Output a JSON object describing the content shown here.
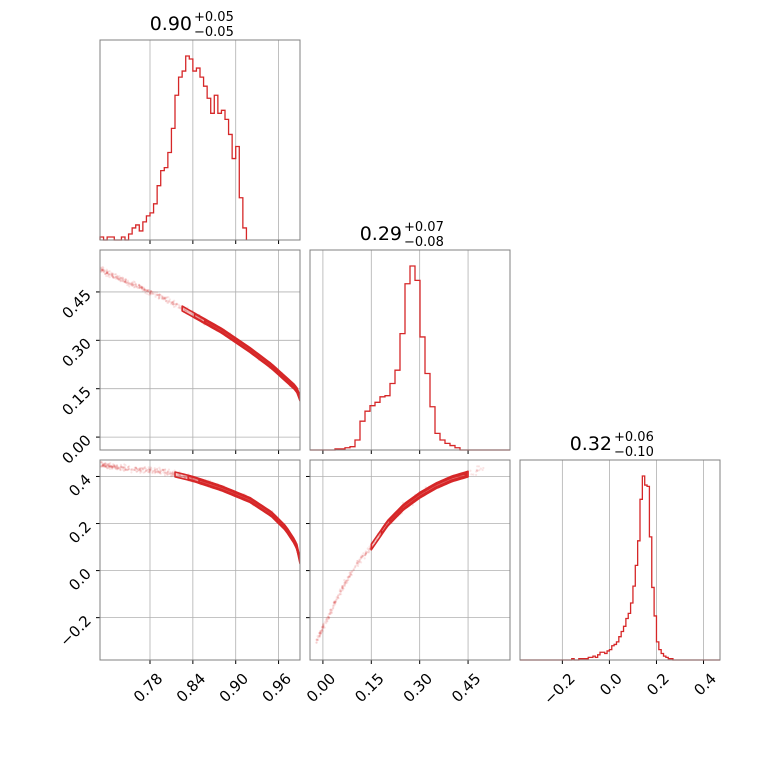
{
  "colors": {
    "accent": "#d62728",
    "grid": "#b0b0b0",
    "frame": "#808080"
  },
  "chart_data": {
    "type": "corner",
    "grid": true,
    "parameters": [
      {
        "id": "p0",
        "range": [
          0.71,
          0.99
        ],
        "ticks": [
          0.78,
          0.84,
          0.9,
          0.96
        ],
        "tick_labels": [
          "0.78",
          "0.84",
          "0.90",
          "0.96"
        ],
        "title": {
          "median": "0.90",
          "plus": "+0.05",
          "minus": "−0.05"
        },
        "hist_start": 0.71,
        "hist_bin_width": 0.005,
        "hist": [
          1,
          0,
          1,
          1,
          0,
          0,
          1,
          0,
          2,
          4,
          5,
          3,
          6,
          8,
          9,
          12,
          18,
          23,
          24,
          29,
          37,
          48,
          54,
          56,
          61,
          60,
          56,
          57,
          54,
          51,
          47,
          42,
          48,
          42,
          43,
          40,
          35,
          27,
          31,
          14,
          4
        ]
      },
      {
        "id": "p1",
        "range": [
          -0.04,
          0.58
        ],
        "ticks": [
          0.0,
          0.15,
          0.3,
          0.45
        ],
        "tick_labels": [
          "0.00",
          "0.15",
          "0.30",
          "0.45"
        ],
        "title": {
          "median": "0.29",
          "plus": "+0.07",
          "minus": "−0.08"
        },
        "hist_start": -0.04,
        "hist_bin_width": 0.0155,
        "hist": [
          0,
          0,
          0,
          0,
          0,
          1,
          1,
          2,
          3,
          9,
          26,
          35,
          40,
          43,
          48,
          49,
          60,
          72,
          105,
          150,
          166,
          153,
          102,
          69,
          39,
          15,
          9,
          6,
          4,
          2,
          0,
          0,
          0,
          0,
          0,
          0,
          0,
          0,
          0,
          0
        ]
      },
      {
        "id": "p2",
        "range": [
          -0.38,
          0.47
        ],
        "ticks": [
          -0.2,
          0.0,
          0.2,
          0.4
        ],
        "tick_labels": [
          "−0.2",
          "0.0",
          "0.2",
          "0.4"
        ],
        "title": {
          "median": "0.32",
          "plus": "+0.06",
          "minus": "−0.10"
        },
        "hist_start": -0.38,
        "hist_bin_width": 0.01,
        "hist": [
          0,
          0,
          0,
          0,
          0,
          0,
          0,
          0,
          0,
          0,
          0,
          0,
          0,
          0,
          0,
          0,
          0,
          0,
          0,
          0,
          0,
          0,
          1,
          0,
          0,
          1,
          1,
          1,
          1,
          2,
          2,
          3,
          2,
          4,
          6,
          6,
          5,
          7,
          8,
          11,
          12,
          14,
          18,
          22,
          26,
          32,
          36,
          44,
          57,
          73,
          92,
          124,
          142,
          135,
          134,
          95,
          56,
          34,
          14,
          8,
          5,
          3,
          2,
          1,
          1,
          0,
          0,
          0,
          0,
          0,
          0,
          0,
          0,
          0,
          0,
          0,
          0,
          0,
          0,
          0,
          0,
          0,
          0,
          0,
          0
        ]
      }
    ],
    "pairs": [
      {
        "x": "p0",
        "y": "p1",
        "relation": [
          [
            0.71,
            0.52
          ],
          [
            0.76,
            0.47
          ],
          [
            0.8,
            0.43
          ],
          [
            0.84,
            0.38
          ],
          [
            0.88,
            0.33
          ],
          [
            0.92,
            0.27
          ],
          [
            0.95,
            0.22
          ],
          [
            0.97,
            0.18
          ],
          [
            0.985,
            0.15
          ],
          [
            0.99,
            0.12
          ]
        ],
        "contour_from": 0.825,
        "contour_to": 0.99,
        "spread": 0.012
      },
      {
        "x": "p0",
        "y": "p2",
        "relation": [
          [
            0.71,
            0.45
          ],
          [
            0.76,
            0.43
          ],
          [
            0.8,
            0.42
          ],
          [
            0.84,
            0.39
          ],
          [
            0.88,
            0.35
          ],
          [
            0.92,
            0.3
          ],
          [
            0.95,
            0.24
          ],
          [
            0.97,
            0.18
          ],
          [
            0.985,
            0.11
          ],
          [
            0.99,
            0.04
          ]
        ],
        "contour_from": 0.815,
        "contour_to": 0.99,
        "spread": 0.012
      },
      {
        "x": "p1",
        "y": "p2",
        "relation": [
          [
            -0.02,
            -0.3
          ],
          [
            0.05,
            -0.1
          ],
          [
            0.1,
            0.02
          ],
          [
            0.15,
            0.1
          ],
          [
            0.2,
            0.2
          ],
          [
            0.25,
            0.27
          ],
          [
            0.3,
            0.32
          ],
          [
            0.35,
            0.36
          ],
          [
            0.4,
            0.39
          ],
          [
            0.45,
            0.41
          ],
          [
            0.52,
            0.45
          ]
        ],
        "contour_from": 0.15,
        "contour_to": 0.45,
        "spread": 0.014
      }
    ]
  }
}
